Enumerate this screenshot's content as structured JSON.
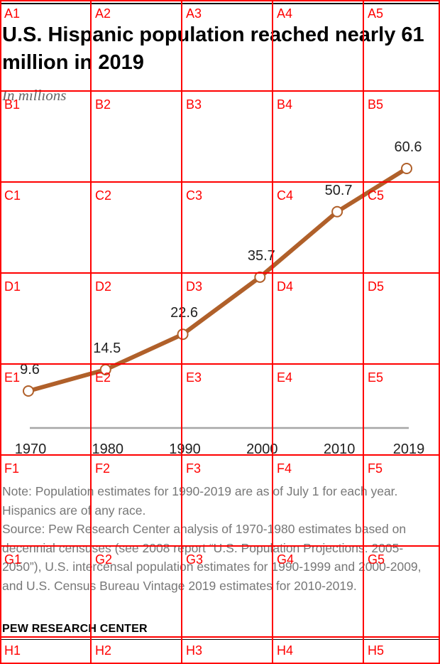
{
  "header": {
    "title": "U.S. Hispanic population reached nearly 61 million in 2019",
    "subtitle": "In millions"
  },
  "chart_data": {
    "type": "line",
    "title": "U.S. Hispanic population reached nearly 61 million in 2019",
    "subtitle": "In millions",
    "xlabel": "",
    "ylabel": "",
    "x": [
      1970,
      1980,
      1990,
      2000,
      2010,
      2019
    ],
    "x_tick_labels": [
      "1970",
      "1980",
      "1990",
      "2000",
      "2010",
      "2019"
    ],
    "series": [
      {
        "values": [
          9.6,
          14.5,
          22.6,
          35.7,
          50.7,
          60.6
        ],
        "labels": [
          "9.6",
          "14.5",
          "22.6",
          "35.7",
          "50.7",
          "60.6"
        ],
        "color": "#b0602a"
      }
    ],
    "ylim": [
      0,
      70
    ],
    "grid": false,
    "legend": "none",
    "baseline_color": "#a6a6a6"
  },
  "footer": {
    "note": "Note: Population estimates for 1990-2019 are as of July 1 for each year. Hispanics are of any race.",
    "source": "Source: Pew Research Center analysis of 1970-1980 estimates based on decennial censuses (see 2008 report “U.S. Population Projections: 2005-2050”), U.S. intercensal population estimates for 1990-1999 and 2000-2009, and U.S. Census Bureau Vintage 2019 estimates for 2010-2019.",
    "credit": "PEW RESEARCH CENTER"
  },
  "overlay_grid": {
    "color": "#ff0000",
    "columns": [
      "A",
      "B",
      "C",
      "D",
      "E",
      "F",
      "G",
      "H"
    ],
    "rows": [
      "1",
      "2",
      "3",
      "4",
      "5"
    ]
  }
}
